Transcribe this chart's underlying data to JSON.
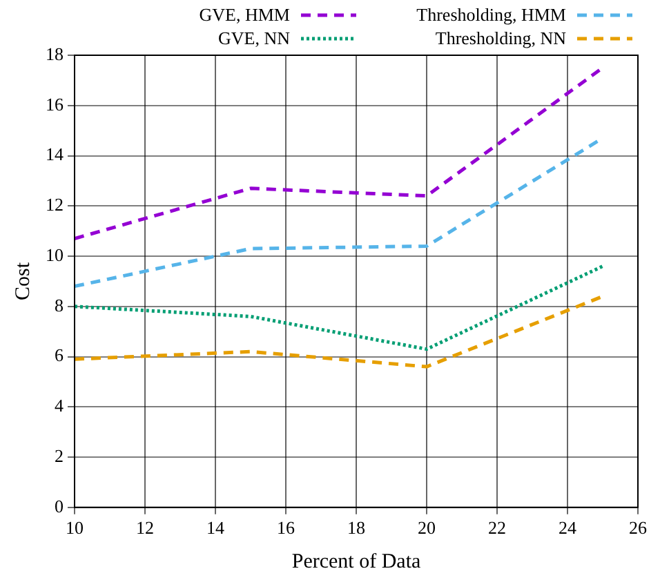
{
  "chart_data": {
    "type": "line",
    "xlabel": "Percent of Data",
    "ylabel": "Cost",
    "x": [
      10,
      15,
      20,
      25
    ],
    "series": [
      {
        "name": "GVE, HMM",
        "color": "#9400d3",
        "line_style": "dashed",
        "values": [
          10.7,
          12.7,
          12.4,
          17.5
        ]
      },
      {
        "name": "Thresholding, HMM",
        "color": "#56b4e9",
        "line_style": "dashed",
        "values": [
          8.8,
          10.3,
          10.4,
          14.7
        ]
      },
      {
        "name": "GVE, NN",
        "color": "#009e73",
        "line_style": "dotted",
        "values": [
          8.0,
          7.6,
          6.3,
          9.6
        ]
      },
      {
        "name": "Thresholding, NN",
        "color": "#e69f00",
        "line_style": "dashed",
        "values": [
          5.9,
          6.2,
          5.6,
          8.4
        ]
      }
    ],
    "xlim": [
      10,
      26
    ],
    "xticks": [
      10,
      12,
      14,
      16,
      18,
      20,
      22,
      24,
      26
    ],
    "ylim": [
      0,
      18
    ],
    "yticks": [
      0,
      2,
      4,
      6,
      8,
      10,
      12,
      14,
      16,
      18
    ],
    "grid": true,
    "legend": "top",
    "marker": "none"
  }
}
